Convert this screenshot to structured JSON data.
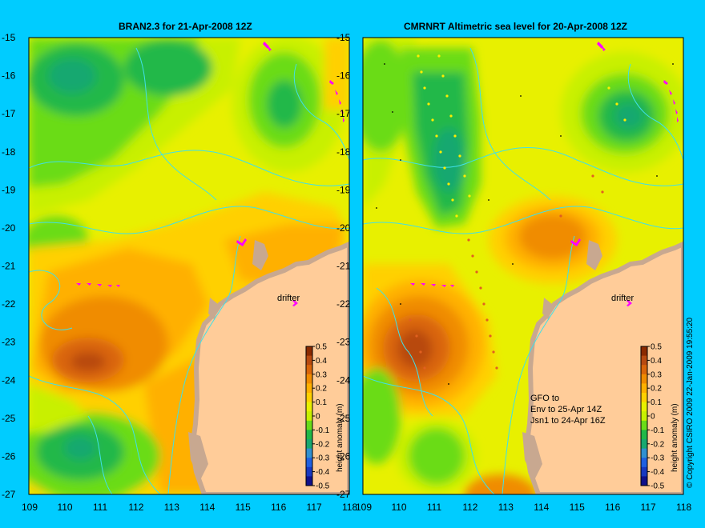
{
  "panels": [
    {
      "title": "BRAN2.3 for 21-Apr-2008 12Z"
    },
    {
      "title": "CMRNRT Altimetric sea level  for 20-Apr-2008 12Z"
    }
  ],
  "axes": {
    "x_ticks": [
      "109",
      "110",
      "111",
      "112",
      "113",
      "114",
      "115",
      "116",
      "117",
      "118"
    ],
    "y_ticks": [
      "-15",
      "-16",
      "-17",
      "-18",
      "-19",
      "-20",
      "-21",
      "-22",
      "-23",
      "-24",
      "-25",
      "-26",
      "-27"
    ],
    "lon_range": [
      109,
      118
    ],
    "lat_range": [
      -27,
      -15
    ]
  },
  "colorbar": {
    "ticks": [
      "0.5",
      "0.4",
      "0.3",
      "0.2",
      "0.1",
      "0",
      "-0.1",
      "-0.2",
      "-0.3",
      "-0.4",
      "-0.5"
    ],
    "label": "height anomaly (m)",
    "colors": [
      "#8b2a00",
      "#b84a10",
      "#d9650a",
      "#f08c00",
      "#ffb000",
      "#ffd000",
      "#e8f000",
      "#c8f000",
      "#6adc18",
      "#20b848",
      "#18a870",
      "#3090d0",
      "#2060e0",
      "#1838c0",
      "#10108a"
    ]
  },
  "labels": {
    "drifter": "drifter",
    "note": "GFO to\nEnv to 25-Apr 14Z\nJsn1 to 24-Apr 16Z",
    "copyright": "© Copyright CSIRO 2009   22-Jan-2009 19:55:20"
  },
  "colors": {
    "background": "#00ccff",
    "land": "#ffcc99",
    "coast_shelf": "#c8a890",
    "contour_line": "#40e0e8",
    "drifter_track": "#ff00ff"
  }
}
